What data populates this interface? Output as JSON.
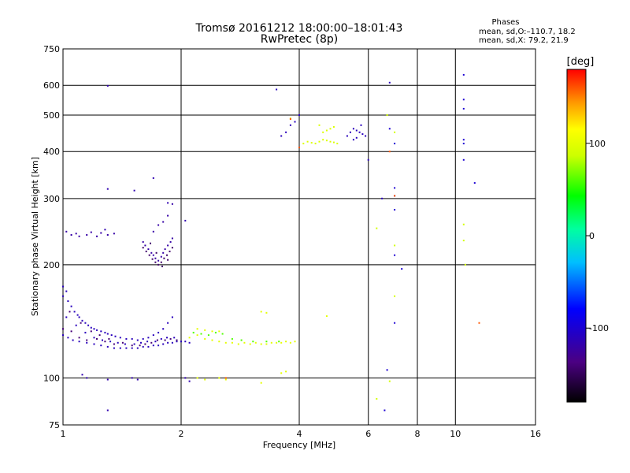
{
  "title": {
    "line1": "Tromsø 20161212 18:00:00–18:01:43",
    "line2": "RwPretec (8p)"
  },
  "phases_box": {
    "heading": "Phases",
    "line_o": "mean, sd,O:–110.7, 18.2",
    "line_x": "mean, sd,X: 79.2, 21.9"
  },
  "colorbar": {
    "label": "[deg]",
    "ticks": [
      {
        "value": 100,
        "label": "100"
      },
      {
        "value": 0,
        "label": "0"
      },
      {
        "value": -100,
        "label": "-100"
      }
    ],
    "range": [
      -180,
      180
    ]
  },
  "chart_data": {
    "type": "scatter",
    "xscale": "log2",
    "yscale": "log",
    "xlim": [
      1,
      16
    ],
    "ylim": [
      75,
      750
    ],
    "xlabel": "Frequency [MHz]",
    "ylabel": "Stationary phase Virtual Height [km]",
    "x_ticks": [
      {
        "value": 1,
        "label": "1"
      },
      {
        "value": 2,
        "label": "2"
      },
      {
        "value": 4,
        "label": "4"
      },
      {
        "value": 6,
        "label": "6"
      },
      {
        "value": 8,
        "label": "8"
      },
      {
        "value": 10,
        "label": "10"
      },
      {
        "value": 16,
        "label": "16"
      }
    ],
    "x_grid": [
      2,
      4,
      6,
      8,
      10
    ],
    "y_ticks": [
      {
        "value": 750,
        "label": "750"
      },
      {
        "value": 600,
        "label": "600"
      },
      {
        "value": 500,
        "label": "500"
      },
      {
        "value": 400,
        "label": "400"
      },
      {
        "value": 300,
        "label": "300"
      },
      {
        "value": 200,
        "label": "200"
      },
      {
        "value": 100,
        "label": "100"
      },
      {
        "value": 75,
        "label": "75"
      }
    ],
    "y_grid": [
      600,
      500,
      400,
      300,
      200,
      100
    ],
    "grid": true,
    "colorbar_label": "[deg]",
    "point_groups": [
      {
        "desc": "O-trace low F",
        "phase": -110,
        "points": [
          [
            1.0,
            175
          ],
          [
            1.0,
            165
          ],
          [
            1.02,
            170
          ],
          [
            1.03,
            160
          ],
          [
            1.05,
            155
          ],
          [
            1.07,
            150
          ],
          [
            1.09,
            147
          ],
          [
            1.1,
            145
          ],
          [
            1.12,
            142
          ],
          [
            1.14,
            140
          ],
          [
            1.16,
            138
          ],
          [
            1.18,
            136
          ],
          [
            1.2,
            135
          ],
          [
            1.22,
            134
          ],
          [
            1.25,
            133
          ],
          [
            1.28,
            132
          ],
          [
            1.3,
            131
          ],
          [
            1.33,
            130
          ],
          [
            1.36,
            129
          ],
          [
            1.4,
            128
          ],
          [
            1.45,
            127
          ],
          [
            1.5,
            127
          ],
          [
            1.55,
            126
          ],
          [
            1.6,
            127
          ],
          [
            1.65,
            128
          ],
          [
            1.7,
            130
          ],
          [
            1.75,
            132
          ],
          [
            1.8,
            135
          ],
          [
            1.85,
            140
          ],
          [
            1.9,
            145
          ],
          [
            1.0,
            130
          ],
          [
            1.03,
            128
          ],
          [
            1.06,
            126
          ],
          [
            1.1,
            125
          ],
          [
            1.15,
            124
          ],
          [
            1.2,
            123
          ],
          [
            1.25,
            122
          ],
          [
            1.3,
            121
          ],
          [
            1.35,
            120
          ],
          [
            1.4,
            120
          ],
          [
            1.45,
            120
          ],
          [
            1.5,
            120
          ],
          [
            1.55,
            120
          ],
          [
            1.6,
            121
          ],
          [
            1.65,
            121
          ],
          [
            1.7,
            122
          ],
          [
            1.75,
            122
          ],
          [
            1.8,
            123
          ],
          [
            1.85,
            124
          ],
          [
            1.9,
            124
          ],
          [
            1.95,
            125
          ],
          [
            2.0,
            125
          ],
          [
            2.05,
            125
          ],
          [
            2.1,
            124
          ],
          [
            1.02,
            145
          ],
          [
            1.08,
            138
          ],
          [
            1.14,
            132
          ],
          [
            1.2,
            128
          ],
          [
            1.26,
            126
          ],
          [
            1.32,
            125
          ],
          [
            1.38,
            124
          ],
          [
            1.44,
            123
          ],
          [
            1.52,
            123
          ],
          [
            1.58,
            124
          ],
          [
            1.64,
            125
          ],
          [
            1.72,
            125
          ],
          [
            1.78,
            127
          ],
          [
            1.84,
            128
          ],
          [
            1.92,
            128
          ]
        ]
      },
      {
        "desc": "O-trace purple mix",
        "phase": -140,
        "points": [
          [
            1.0,
            135
          ],
          [
            1.05,
            133
          ],
          [
            1.1,
            128
          ],
          [
            1.15,
            126
          ],
          [
            1.22,
            127
          ],
          [
            1.28,
            125
          ],
          [
            1.35,
            123
          ],
          [
            1.42,
            124
          ],
          [
            1.5,
            122
          ],
          [
            1.57,
            122
          ],
          [
            1.62,
            123
          ],
          [
            1.68,
            124
          ],
          [
            1.74,
            126
          ],
          [
            1.82,
            126
          ],
          [
            1.88,
            127
          ],
          [
            1.95,
            126
          ],
          [
            1.04,
            150
          ],
          [
            1.11,
            140
          ],
          [
            1.18,
            133
          ],
          [
            1.24,
            130
          ],
          [
            1.31,
            127
          ]
        ]
      },
      {
        "desc": "low-frequency upper cluster",
        "phase": -120,
        "points": [
          [
            1.02,
            245
          ],
          [
            1.05,
            240
          ],
          [
            1.08,
            242
          ],
          [
            1.1,
            238
          ],
          [
            1.15,
            240
          ],
          [
            1.18,
            244
          ],
          [
            1.22,
            238
          ],
          [
            1.25,
            243
          ],
          [
            1.3,
            240
          ],
          [
            1.35,
            242
          ],
          [
            1.6,
            230
          ],
          [
            1.62,
            225
          ],
          [
            1.65,
            220
          ],
          [
            1.68,
            215
          ],
          [
            1.7,
            212
          ],
          [
            1.72,
            208
          ],
          [
            1.75,
            205
          ],
          [
            1.78,
            210
          ],
          [
            1.8,
            215
          ],
          [
            1.82,
            220
          ],
          [
            1.85,
            225
          ],
          [
            1.88,
            230
          ],
          [
            1.9,
            235
          ],
          [
            1.7,
            245
          ],
          [
            1.75,
            255
          ],
          [
            1.8,
            260
          ],
          [
            1.85,
            270
          ],
          [
            1.9,
            290
          ]
        ]
      },
      {
        "desc": "low-frequency upper purple",
        "phase": -145,
        "points": [
          [
            1.6,
            222
          ],
          [
            1.63,
            217
          ],
          [
            1.66,
            212
          ],
          [
            1.69,
            207
          ],
          [
            1.72,
            203
          ],
          [
            1.75,
            200
          ],
          [
            1.78,
            203
          ],
          [
            1.81,
            208
          ],
          [
            1.84,
            212
          ],
          [
            1.87,
            217
          ],
          [
            1.9,
            222
          ],
          [
            1.67,
            228
          ],
          [
            1.73,
            215
          ],
          [
            1.79,
            198
          ],
          [
            1.85,
            206
          ]
        ]
      },
      {
        "desc": "scattered low-F",
        "phase": -115,
        "points": [
          [
            1.3,
            598
          ],
          [
            1.3,
            318
          ],
          [
            1.52,
            315
          ],
          [
            1.7,
            340
          ],
          [
            1.85,
            292
          ],
          [
            2.05,
            262
          ],
          [
            1.28,
            248
          ],
          [
            1.15,
            100
          ],
          [
            1.12,
            102
          ],
          [
            1.3,
            99
          ],
          [
            1.5,
            100
          ],
          [
            1.55,
            99
          ],
          [
            2.05,
            100
          ],
          [
            2.1,
            98
          ],
          [
            1.3,
            82
          ]
        ]
      },
      {
        "desc": "F-region yellow-green",
        "phase": 100,
        "points": [
          [
            2.1,
            128
          ],
          [
            2.2,
            130
          ],
          [
            2.3,
            127
          ],
          [
            2.4,
            126
          ],
          [
            2.5,
            125
          ],
          [
            2.6,
            124
          ],
          [
            2.7,
            124
          ],
          [
            2.8,
            123
          ],
          [
            2.9,
            124
          ],
          [
            3.0,
            123
          ],
          [
            3.1,
            124
          ],
          [
            3.2,
            123
          ],
          [
            3.3,
            123
          ],
          [
            3.4,
            124
          ],
          [
            3.5,
            124
          ],
          [
            3.6,
            124
          ],
          [
            3.7,
            125
          ],
          [
            3.8,
            124
          ],
          [
            3.9,
            125
          ],
          [
            2.2,
            135
          ],
          [
            2.3,
            134
          ],
          [
            2.4,
            133
          ],
          [
            2.5,
            133
          ],
          [
            3.2,
            150
          ],
          [
            3.3,
            149
          ],
          [
            4.7,
            146
          ],
          [
            2.2,
            100
          ],
          [
            2.3,
            99
          ],
          [
            2.5,
            100
          ],
          [
            2.6,
            99
          ],
          [
            3.2,
            97
          ],
          [
            3.6,
            103
          ],
          [
            3.7,
            104
          ]
        ]
      },
      {
        "desc": "F-region green",
        "phase": 60,
        "points": [
          [
            2.15,
            132
          ],
          [
            2.25,
            131
          ],
          [
            2.35,
            130
          ],
          [
            2.45,
            132
          ],
          [
            2.55,
            131
          ],
          [
            2.7,
            127
          ],
          [
            2.85,
            126
          ],
          [
            3.05,
            125
          ],
          [
            3.3,
            125
          ],
          [
            3.55,
            125
          ]
        ]
      },
      {
        "desc": "upper F2 yellow",
        "phase": 95,
        "points": [
          [
            4.1,
            420
          ],
          [
            4.2,
            425
          ],
          [
            4.3,
            422
          ],
          [
            4.4,
            420
          ],
          [
            4.5,
            425
          ],
          [
            4.6,
            430
          ],
          [
            4.7,
            428
          ],
          [
            4.8,
            425
          ],
          [
            4.9,
            423
          ],
          [
            5.0,
            420
          ],
          [
            4.6,
            450
          ],
          [
            4.7,
            455
          ],
          [
            4.8,
            460
          ],
          [
            4.5,
            470
          ],
          [
            4.9,
            465
          ]
        ]
      },
      {
        "desc": "upper F2 blue",
        "phase": -110,
        "points": [
          [
            3.6,
            440
          ],
          [
            3.7,
            450
          ],
          [
            3.8,
            470
          ],
          [
            3.9,
            480
          ],
          [
            4.0,
            500
          ],
          [
            5.3,
            440
          ],
          [
            5.4,
            450
          ],
          [
            5.5,
            460
          ],
          [
            5.6,
            455
          ],
          [
            5.7,
            450
          ],
          [
            5.8,
            445
          ],
          [
            5.9,
            440
          ],
          [
            5.5,
            430
          ],
          [
            5.6,
            435
          ],
          [
            5.75,
            470
          ],
          [
            3.5,
            585
          ],
          [
            6.0,
            380
          ],
          [
            6.5,
            300
          ],
          [
            6.8,
            610
          ]
        ]
      },
      {
        "desc": "high-frequency scatter",
        "phase": -100,
        "points": [
          [
            6.8,
            460
          ],
          [
            7.0,
            420
          ],
          [
            7.0,
            320
          ],
          [
            7.0,
            305
          ],
          [
            7.0,
            280
          ],
          [
            7.0,
            212
          ],
          [
            7.3,
            195
          ],
          [
            7.0,
            140
          ],
          [
            6.7,
            105
          ],
          [
            6.6,
            82
          ],
          [
            10.5,
            640
          ],
          [
            10.5,
            550
          ],
          [
            10.5,
            520
          ],
          [
            10.5,
            430
          ],
          [
            10.5,
            420
          ],
          [
            10.5,
            380
          ],
          [
            11.2,
            330
          ]
        ]
      },
      {
        "desc": "high-frequency warm",
        "phase": 90,
        "points": [
          [
            6.3,
            250
          ],
          [
            6.7,
            500
          ],
          [
            7.0,
            450
          ],
          [
            7.0,
            225
          ],
          [
            7.0,
            165
          ],
          [
            10.5,
            256
          ],
          [
            10.5,
            232
          ],
          [
            10.6,
            200
          ],
          [
            6.3,
            88
          ],
          [
            6.8,
            98
          ],
          [
            3.8,
            490
          ]
        ]
      },
      {
        "desc": "red outliers",
        "phase": 160,
        "points": [
          [
            4.0,
            410
          ],
          [
            6.8,
            400
          ],
          [
            7.0,
            305
          ],
          [
            11.5,
            140
          ],
          [
            3.8,
            488
          ],
          [
            2.6,
            100
          ]
        ]
      }
    ]
  }
}
